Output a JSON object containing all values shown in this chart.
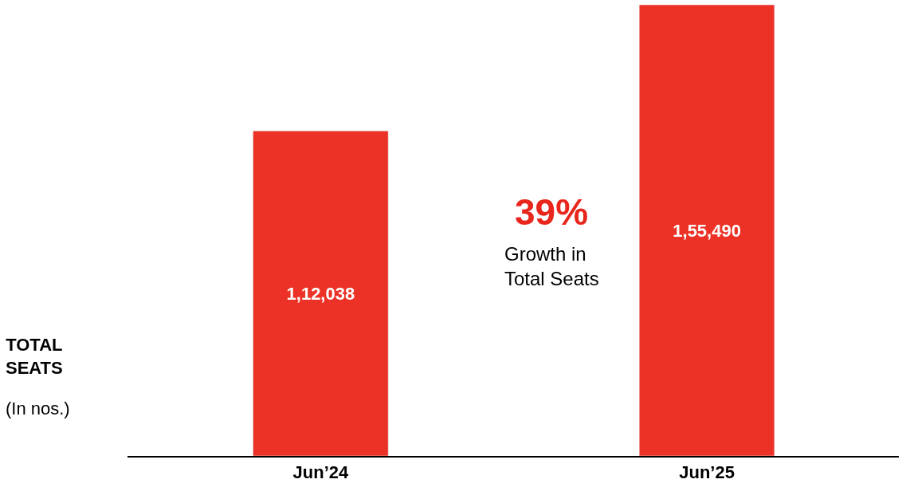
{
  "chart_data": {
    "type": "bar",
    "categories": [
      "Jun’24",
      "Jun’25"
    ],
    "values": [
      112038,
      155490
    ],
    "value_labels": [
      "1,12,038",
      "1,55,490"
    ],
    "color": "#ec3226",
    "ylabel": "TOTAL SEATS",
    "annotations": [
      "39%",
      "Growth in Total Seats",
      "(In nos.)"
    ],
    "legend": false
  }
}
